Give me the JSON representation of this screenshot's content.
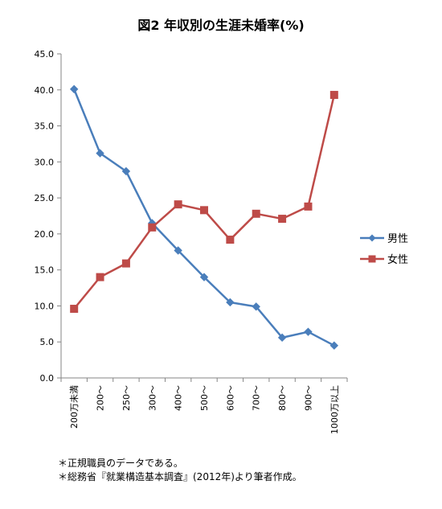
{
  "chart_data": {
    "type": "line",
    "title": "図2 年収別の生涯未婚率(%)",
    "xlabel": "",
    "ylabel": "",
    "categories": [
      "200万未満",
      "200～",
      "250～",
      "300～",
      "400～",
      "500～",
      "600～",
      "700～",
      "800～",
      "900～",
      "1000万以上"
    ],
    "ylim": [
      0,
      45
    ],
    "yticks": [
      "0.0",
      "5.0",
      "10.0",
      "15.0",
      "20.0",
      "25.0",
      "30.0",
      "35.0",
      "40.0",
      "45.0"
    ],
    "grid": false,
    "legend_position": "right",
    "series": [
      {
        "name": "男性",
        "color": "#4a7ebb",
        "marker": "diamond",
        "values": [
          40.1,
          31.2,
          28.7,
          21.5,
          17.7,
          14.0,
          10.5,
          9.9,
          5.6,
          6.4,
          4.5
        ]
      },
      {
        "name": "女性",
        "color": "#be4b48",
        "marker": "square",
        "values": [
          9.6,
          14.0,
          15.9,
          20.9,
          24.1,
          23.3,
          19.2,
          22.8,
          22.1,
          23.8,
          39.3
        ]
      }
    ]
  },
  "footnotes": [
    "＊正規職員のデータである。",
    "＊総務省『就業構造基本調査』(2012年)より筆者作成。"
  ]
}
